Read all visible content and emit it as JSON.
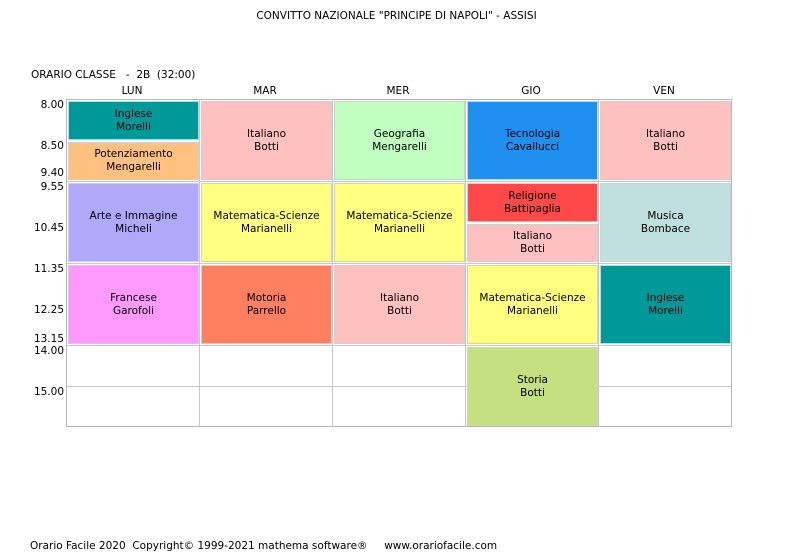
{
  "title": "CONVITTO NAZIONALE \"PRINCIPE DI NAPOLI\" - ASSISI",
  "class_label": "ORARIO CLASSE   -  2B  (32:00)",
  "days": [
    "LUN",
    "MAR",
    "MER",
    "GIO",
    "VEN"
  ],
  "times": [
    "8.00",
    "8.50",
    "9.40",
    "9.55",
    "10.45",
    "11.35",
    "12.25",
    "13.15",
    "14.00",
    "15.00"
  ],
  "lessons": [
    {
      "subject": "Inglese",
      "teacher": "Morelli",
      "color": "#009999"
    },
    {
      "subject": "Potenziamento",
      "teacher": "Mengarelli",
      "color": "#ffc080"
    },
    {
      "subject": "Arte e Immagine",
      "teacher": "Micheli",
      "color": "#b0a8f8"
    },
    {
      "subject": "Francese",
      "teacher": "Garofoli",
      "color": "#ff99ff"
    },
    {
      "subject": "Italiano",
      "teacher": "Botti",
      "color": "#ffc0c0"
    },
    {
      "subject": "Matematica-Scienze",
      "teacher": "Marianelli",
      "color": "#ffff80"
    },
    {
      "subject": "Motoria",
      "teacher": "Parrello",
      "color": "#ff8060"
    },
    {
      "subject": "Geografia",
      "teacher": "Mengarelli",
      "color": "#c0ffc0"
    },
    {
      "subject": "Matematica-Scienze",
      "teacher": "Marianelli",
      "color": "#ffff80"
    },
    {
      "subject": "Italiano",
      "teacher": "Botti",
      "color": "#ffc0c0"
    },
    {
      "subject": "Tecnologia",
      "teacher": "Cavallucci",
      "color": "#2090f0"
    },
    {
      "subject": "Religione",
      "teacher": "Battipaglia",
      "color": "#ff4848"
    },
    {
      "subject": "Italiano",
      "teacher": "Botti",
      "color": "#ffc0c0"
    },
    {
      "subject": "Matematica-Scienze",
      "teacher": "Marianelli",
      "color": "#ffff80"
    },
    {
      "subject": "Storia",
      "teacher": "Botti",
      "color": "#c4e080"
    },
    {
      "subject": "Italiano",
      "teacher": "Botti",
      "color": "#ffc0c0"
    },
    {
      "subject": "Musica",
      "teacher": "Bombace",
      "color": "#c0e0e0"
    },
    {
      "subject": "Inglese",
      "teacher": "Morelli",
      "color": "#009999"
    }
  ],
  "footer": "Orario Facile 2020  Copyright© 1999-2021 mathema software®     www.orariofacile.com"
}
